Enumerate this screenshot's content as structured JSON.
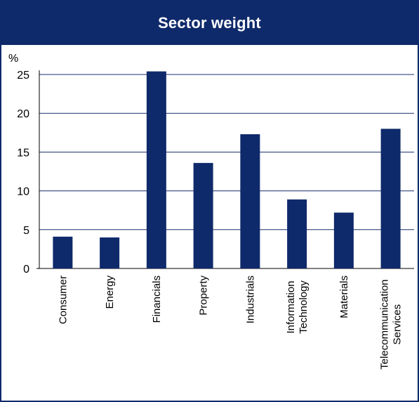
{
  "chart_data": {
    "type": "bar",
    "title": "Sector weight",
    "ylabel": "%",
    "xlabel": "",
    "ylim": [
      0,
      25
    ],
    "yticks": [
      0,
      5,
      10,
      15,
      20,
      25
    ],
    "grid": true,
    "categories": [
      [
        "Consumer"
      ],
      [
        "Energy"
      ],
      [
        "Financials"
      ],
      [
        "Property"
      ],
      [
        "Industrials"
      ],
      [
        "Information",
        "Technology"
      ],
      [
        "Materials"
      ],
      [
        "Telecommunication",
        "Services"
      ]
    ],
    "values": [
      4.1,
      4.0,
      25.4,
      13.6,
      17.3,
      8.9,
      7.2,
      18.0
    ]
  },
  "colors": {
    "bar": "#0f2a6b",
    "header_bg": "#0f2a6b",
    "grid": "#1a2f6e"
  }
}
